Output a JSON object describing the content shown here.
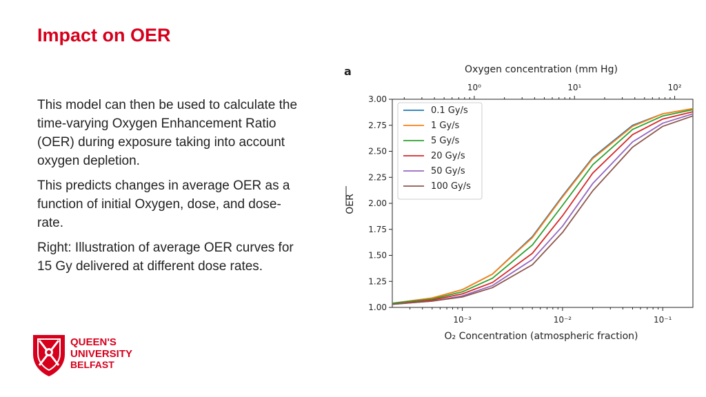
{
  "slide": {
    "title": "Impact on OER",
    "paragraphs": [
      "This model can then be used to calculate the time-varying Oxygen Enhancement Ratio (OER) during exposure taking into account oxygen depletion.",
      "This predicts changes in average OER as a function of initial Oxygen, dose, and dose-rate.",
      "Right: Illustration of average OER curves for 15 Gy delivered at different dose rates."
    ]
  },
  "logo": {
    "line1": "QUEEN'S",
    "line2": "UNIVERSITY",
    "line3": "BELFAST",
    "color": "#d6001c"
  },
  "chart_data": {
    "type": "line",
    "panel_label": "a",
    "title": "",
    "xlabel": "O₂ Concentration (atmospheric fraction)",
    "ylabel": "OER",
    "x_scale": "log",
    "xlim": [
      0.0002,
      0.2
    ],
    "ylim": [
      1.0,
      3.0
    ],
    "x_ticks": [
      0.001,
      0.01,
      0.1
    ],
    "x_tick_labels": [
      "10⁻³",
      "10⁻²",
      "10⁻¹"
    ],
    "y_ticks": [
      1.0,
      1.25,
      1.5,
      1.75,
      2.0,
      2.25,
      2.5,
      2.75,
      3.0
    ],
    "y_tick_labels": [
      "1.00",
      "1.25",
      "1.50",
      "1.75",
      "2.00",
      "2.25",
      "2.50",
      "2.75",
      "3.00"
    ],
    "secondary_x_axis": {
      "label": "Oxygen concentration (mm Hg)",
      "ticks": [
        1,
        10,
        100
      ],
      "tick_labels": [
        "10⁰",
        "10¹",
        "10²"
      ]
    },
    "grid": false,
    "legend_position": "top-left",
    "x": [
      0.0002,
      0.0005,
      0.001,
      0.002,
      0.005,
      0.01,
      0.02,
      0.05,
      0.1,
      0.2
    ],
    "series": [
      {
        "name": "0.1 Gy/s",
        "color": "#1f77b4",
        "values": [
          1.04,
          1.09,
          1.17,
          1.32,
          1.68,
          2.07,
          2.44,
          2.75,
          2.86,
          2.91
        ]
      },
      {
        "name": "1 Gy/s",
        "color": "#ff7f0e",
        "values": [
          1.04,
          1.09,
          1.17,
          1.32,
          1.67,
          2.06,
          2.43,
          2.74,
          2.86,
          2.91
        ]
      },
      {
        "name": "5 Gy/s",
        "color": "#2ca02c",
        "values": [
          1.04,
          1.08,
          1.15,
          1.28,
          1.6,
          1.98,
          2.37,
          2.71,
          2.84,
          2.9
        ]
      },
      {
        "name": "20 Gy/s",
        "color": "#d62728",
        "values": [
          1.03,
          1.07,
          1.13,
          1.24,
          1.52,
          1.88,
          2.29,
          2.66,
          2.81,
          2.88
        ]
      },
      {
        "name": "50 Gy/s",
        "color": "#9467bd",
        "values": [
          1.03,
          1.06,
          1.11,
          1.21,
          1.46,
          1.78,
          2.19,
          2.59,
          2.77,
          2.86
        ]
      },
      {
        "name": "100 Gy/s",
        "color": "#8c564b",
        "values": [
          1.03,
          1.06,
          1.1,
          1.19,
          1.41,
          1.72,
          2.12,
          2.54,
          2.74,
          2.84
        ]
      }
    ]
  }
}
